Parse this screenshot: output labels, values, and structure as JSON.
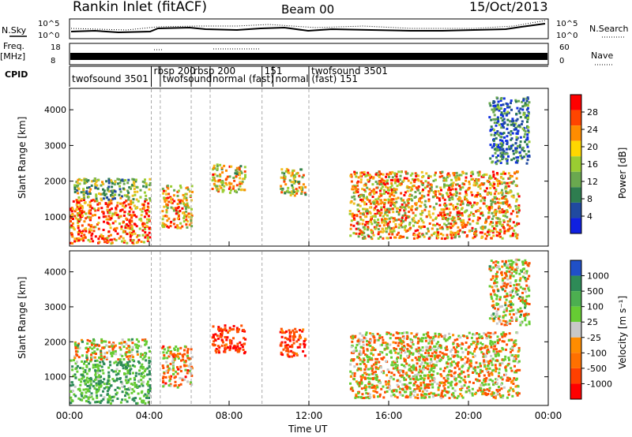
{
  "header": {
    "station": "Rankin Inlet (fitACF)",
    "beam": "Beam 00",
    "date": "15/Oct/2013"
  },
  "top_panels": {
    "nsky": {
      "label": "N.Sky",
      "right_label": "N.Search",
      "left_ticks": [
        "10^5",
        "10^0"
      ],
      "right_ticks": [
        "10^5",
        "10^0"
      ]
    },
    "freq": {
      "label": "Freq.",
      "unit": "[MHz]",
      "right_label": "Nave",
      "left_ticks": [
        "18",
        "8"
      ],
      "right_ticks": [
        "60",
        "0"
      ]
    },
    "cpid": {
      "label": "CPID",
      "segments": [
        {
          "label": "twofsound 3501",
          "start_h": 0.0
        },
        {
          "label": "rbsp 200",
          "start_h": 4.1
        },
        {
          "label": "twofsound",
          "start_h": 4.55
        },
        {
          "label": "rbsp 200",
          "start_h": 6.1
        },
        {
          "label": "normal (fast)",
          "start_h": 7.05
        },
        {
          "label": "151",
          "start_h": 9.65
        },
        {
          "label": "normal (fast) 151",
          "start_h": 10.2
        },
        {
          "label": "twofsound 3501",
          "start_h": 12.0
        }
      ]
    }
  },
  "power_panel": {
    "ylabel": "Slant Range [km]",
    "colorbar_label": "Power [dB]",
    "colorbar_ticks": [
      "28",
      "24",
      "20",
      "16",
      "12",
      "8",
      "4"
    ]
  },
  "velocity_panel": {
    "ylabel": "Slant Range [km]",
    "colorbar_label": "Velocity  [m s⁻¹]",
    "colorbar_ticks": [
      "1000",
      "500",
      "100",
      "25",
      "-25",
      "-100",
      "-500",
      "-1000"
    ]
  },
  "x_axis": {
    "label": "Time UT",
    "ticks": [
      "00:00",
      "04:00",
      "08:00",
      "12:00",
      "16:00",
      "20:00",
      "00:00"
    ]
  },
  "chart_data": [
    {
      "type": "heatmap",
      "title": "",
      "xlabel": "Time UT",
      "ylabel": "Slant Range [km]",
      "xlim_hours": [
        0,
        24
      ],
      "ylim": [
        180,
        4600
      ],
      "yticks": [
        1000,
        2000,
        3000,
        4000
      ],
      "value_label": "Power [dB]",
      "value_range": [
        0,
        30
      ],
      "mode_change_hours": [
        4.1,
        4.55,
        6.1,
        7.05,
        9.65,
        12.0
      ],
      "regions": [
        {
          "t0": 0.0,
          "t1": 4.0,
          "r0": 250,
          "r1": 1500,
          "value": 28
        },
        {
          "t0": 0.2,
          "t1": 4.0,
          "r0": 1500,
          "r1": 2100,
          "value": 16
        },
        {
          "t0": 4.6,
          "t1": 6.1,
          "r0": 700,
          "r1": 1900,
          "value": 24
        },
        {
          "t0": 7.1,
          "t1": 8.8,
          "r0": 1700,
          "r1": 2500,
          "value": 22
        },
        {
          "t0": 10.5,
          "t1": 11.8,
          "r0": 1600,
          "r1": 2400,
          "value": 20
        },
        {
          "t0": 14.0,
          "t1": 22.5,
          "r0": 400,
          "r1": 2300,
          "value": 24
        },
        {
          "t0": 21.0,
          "t1": 23.0,
          "r0": 2500,
          "r1": 4400,
          "value": 10
        }
      ]
    },
    {
      "type": "heatmap",
      "title": "",
      "xlabel": "Time UT",
      "ylabel": "Slant Range [km]",
      "xlim_hours": [
        0,
        24
      ],
      "ylim": [
        180,
        4600
      ],
      "yticks": [
        1000,
        2000,
        3000,
        4000
      ],
      "value_label": "Velocity [m s-1]",
      "value_range": [
        -1000,
        1000
      ],
      "mode_change_hours": [
        4.1,
        4.55,
        6.1,
        7.05,
        9.65,
        12.0
      ],
      "regions": [
        {
          "t0": 0.0,
          "t1": 4.0,
          "r0": 250,
          "r1": 1500,
          "value": 500
        },
        {
          "t0": 0.2,
          "t1": 4.0,
          "r0": 1500,
          "r1": 2100,
          "value": 100
        },
        {
          "t0": 4.6,
          "t1": 6.1,
          "r0": 700,
          "r1": 1900,
          "value": -100
        },
        {
          "t0": 7.1,
          "t1": 8.8,
          "r0": 1700,
          "r1": 2500,
          "value": -500
        },
        {
          "t0": 10.5,
          "t1": 11.8,
          "r0": 1600,
          "r1": 2400,
          "value": -500
        },
        {
          "t0": 14.0,
          "t1": 22.5,
          "r0": 400,
          "r1": 2300,
          "value": 0
        },
        {
          "t0": 21.0,
          "t1": 23.0,
          "r0": 2500,
          "r1": 4400,
          "value": 100
        }
      ]
    }
  ]
}
